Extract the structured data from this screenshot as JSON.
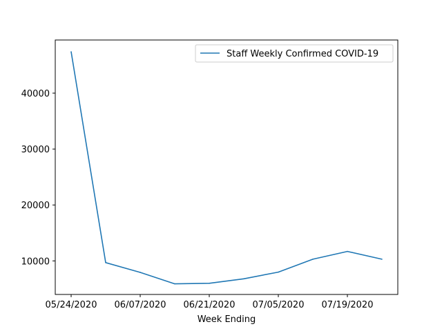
{
  "chart_data": {
    "type": "line",
    "title": "",
    "xlabel": "Week Ending",
    "ylabel": "",
    "x": [
      "05/24/2020",
      "05/31/2020",
      "06/07/2020",
      "06/14/2020",
      "06/21/2020",
      "06/28/2020",
      "07/05/2020",
      "07/12/2020",
      "07/19/2020",
      "07/26/2020"
    ],
    "x_tick_labels": [
      "05/24/2020",
      "06/07/2020",
      "06/21/2020",
      "07/05/2020",
      "07/19/2020"
    ],
    "y_ticks": [
      10000,
      20000,
      30000,
      40000
    ],
    "y_tick_labels": [
      "10000",
      "20000",
      "30000",
      "40000"
    ],
    "ylim": [
      4000,
      49500
    ],
    "grid": false,
    "legend_position": "top-right",
    "series": [
      {
        "name": "Staff Weekly Confirmed COVID-19",
        "color": "#1f77b4",
        "values": [
          47400,
          9700,
          7950,
          5900,
          6000,
          6800,
          8000,
          10300,
          11700,
          10300
        ]
      }
    ]
  }
}
